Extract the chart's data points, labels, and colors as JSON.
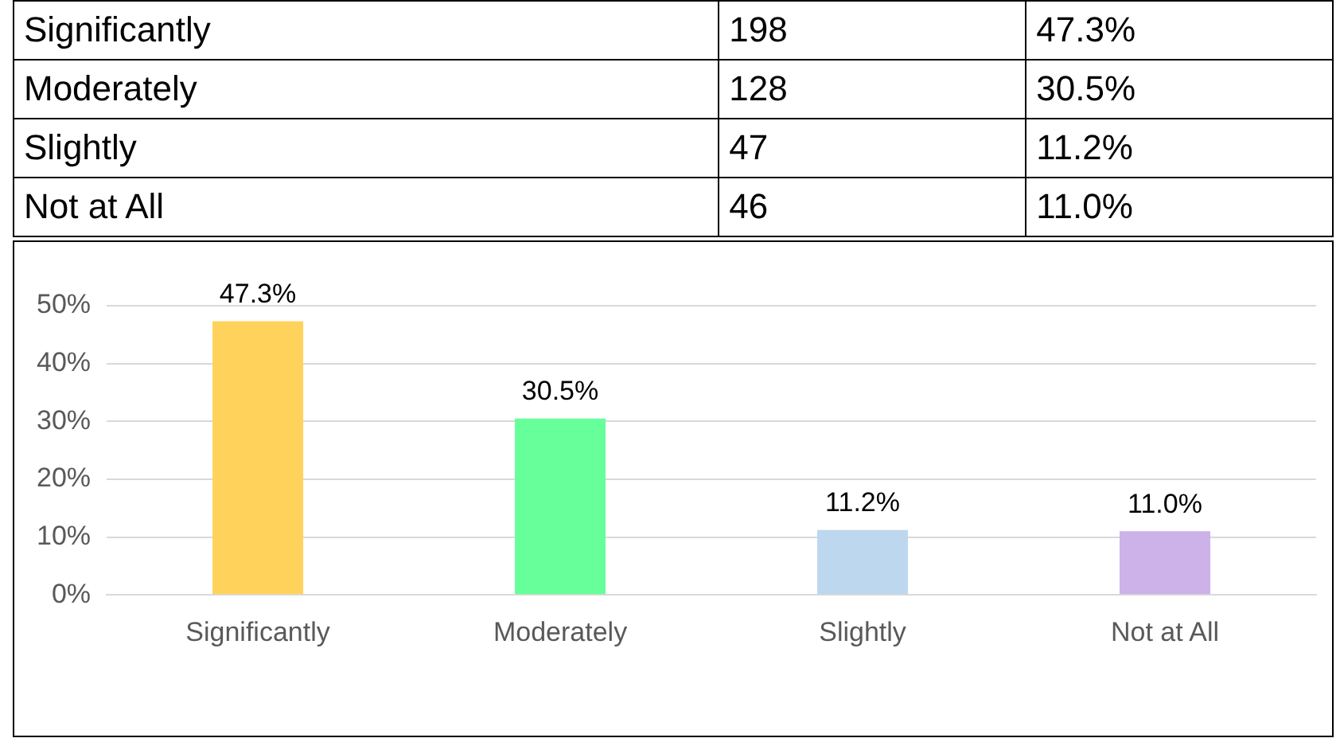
{
  "chart_data": [
    {
      "type": "other",
      "annotations": [
        "Significantly",
        "198",
        "47.3%",
        "Moderately",
        "128",
        "30.5%",
        "Slightly",
        "47",
        "11.2%",
        "Not at All",
        "46",
        "11.0%"
      ]
    },
    {
      "type": "bar",
      "categories": [
        "Significantly",
        "Moderately",
        "Slightly",
        "Not at All"
      ],
      "values": [
        47.3,
        30.5,
        11.2,
        11.0
      ],
      "colors": [
        "#ffd35b",
        "#66ff99",
        "#bdd7ee",
        "#cdb1e9"
      ],
      "value_labels": [
        "47.3%",
        "30.5%",
        "11.2%",
        "11.0%"
      ],
      "ylim": [
        0,
        50
      ],
      "yticks": [
        {
          "value": 0,
          "label": "0%"
        },
        {
          "value": 10,
          "label": "10%"
        },
        {
          "value": 20,
          "label": "20%"
        },
        {
          "value": 30,
          "label": "30%"
        },
        {
          "value": 40,
          "label": "40%"
        },
        {
          "value": 50,
          "label": "50%"
        }
      ],
      "grid": "y",
      "legend": false
    }
  ]
}
